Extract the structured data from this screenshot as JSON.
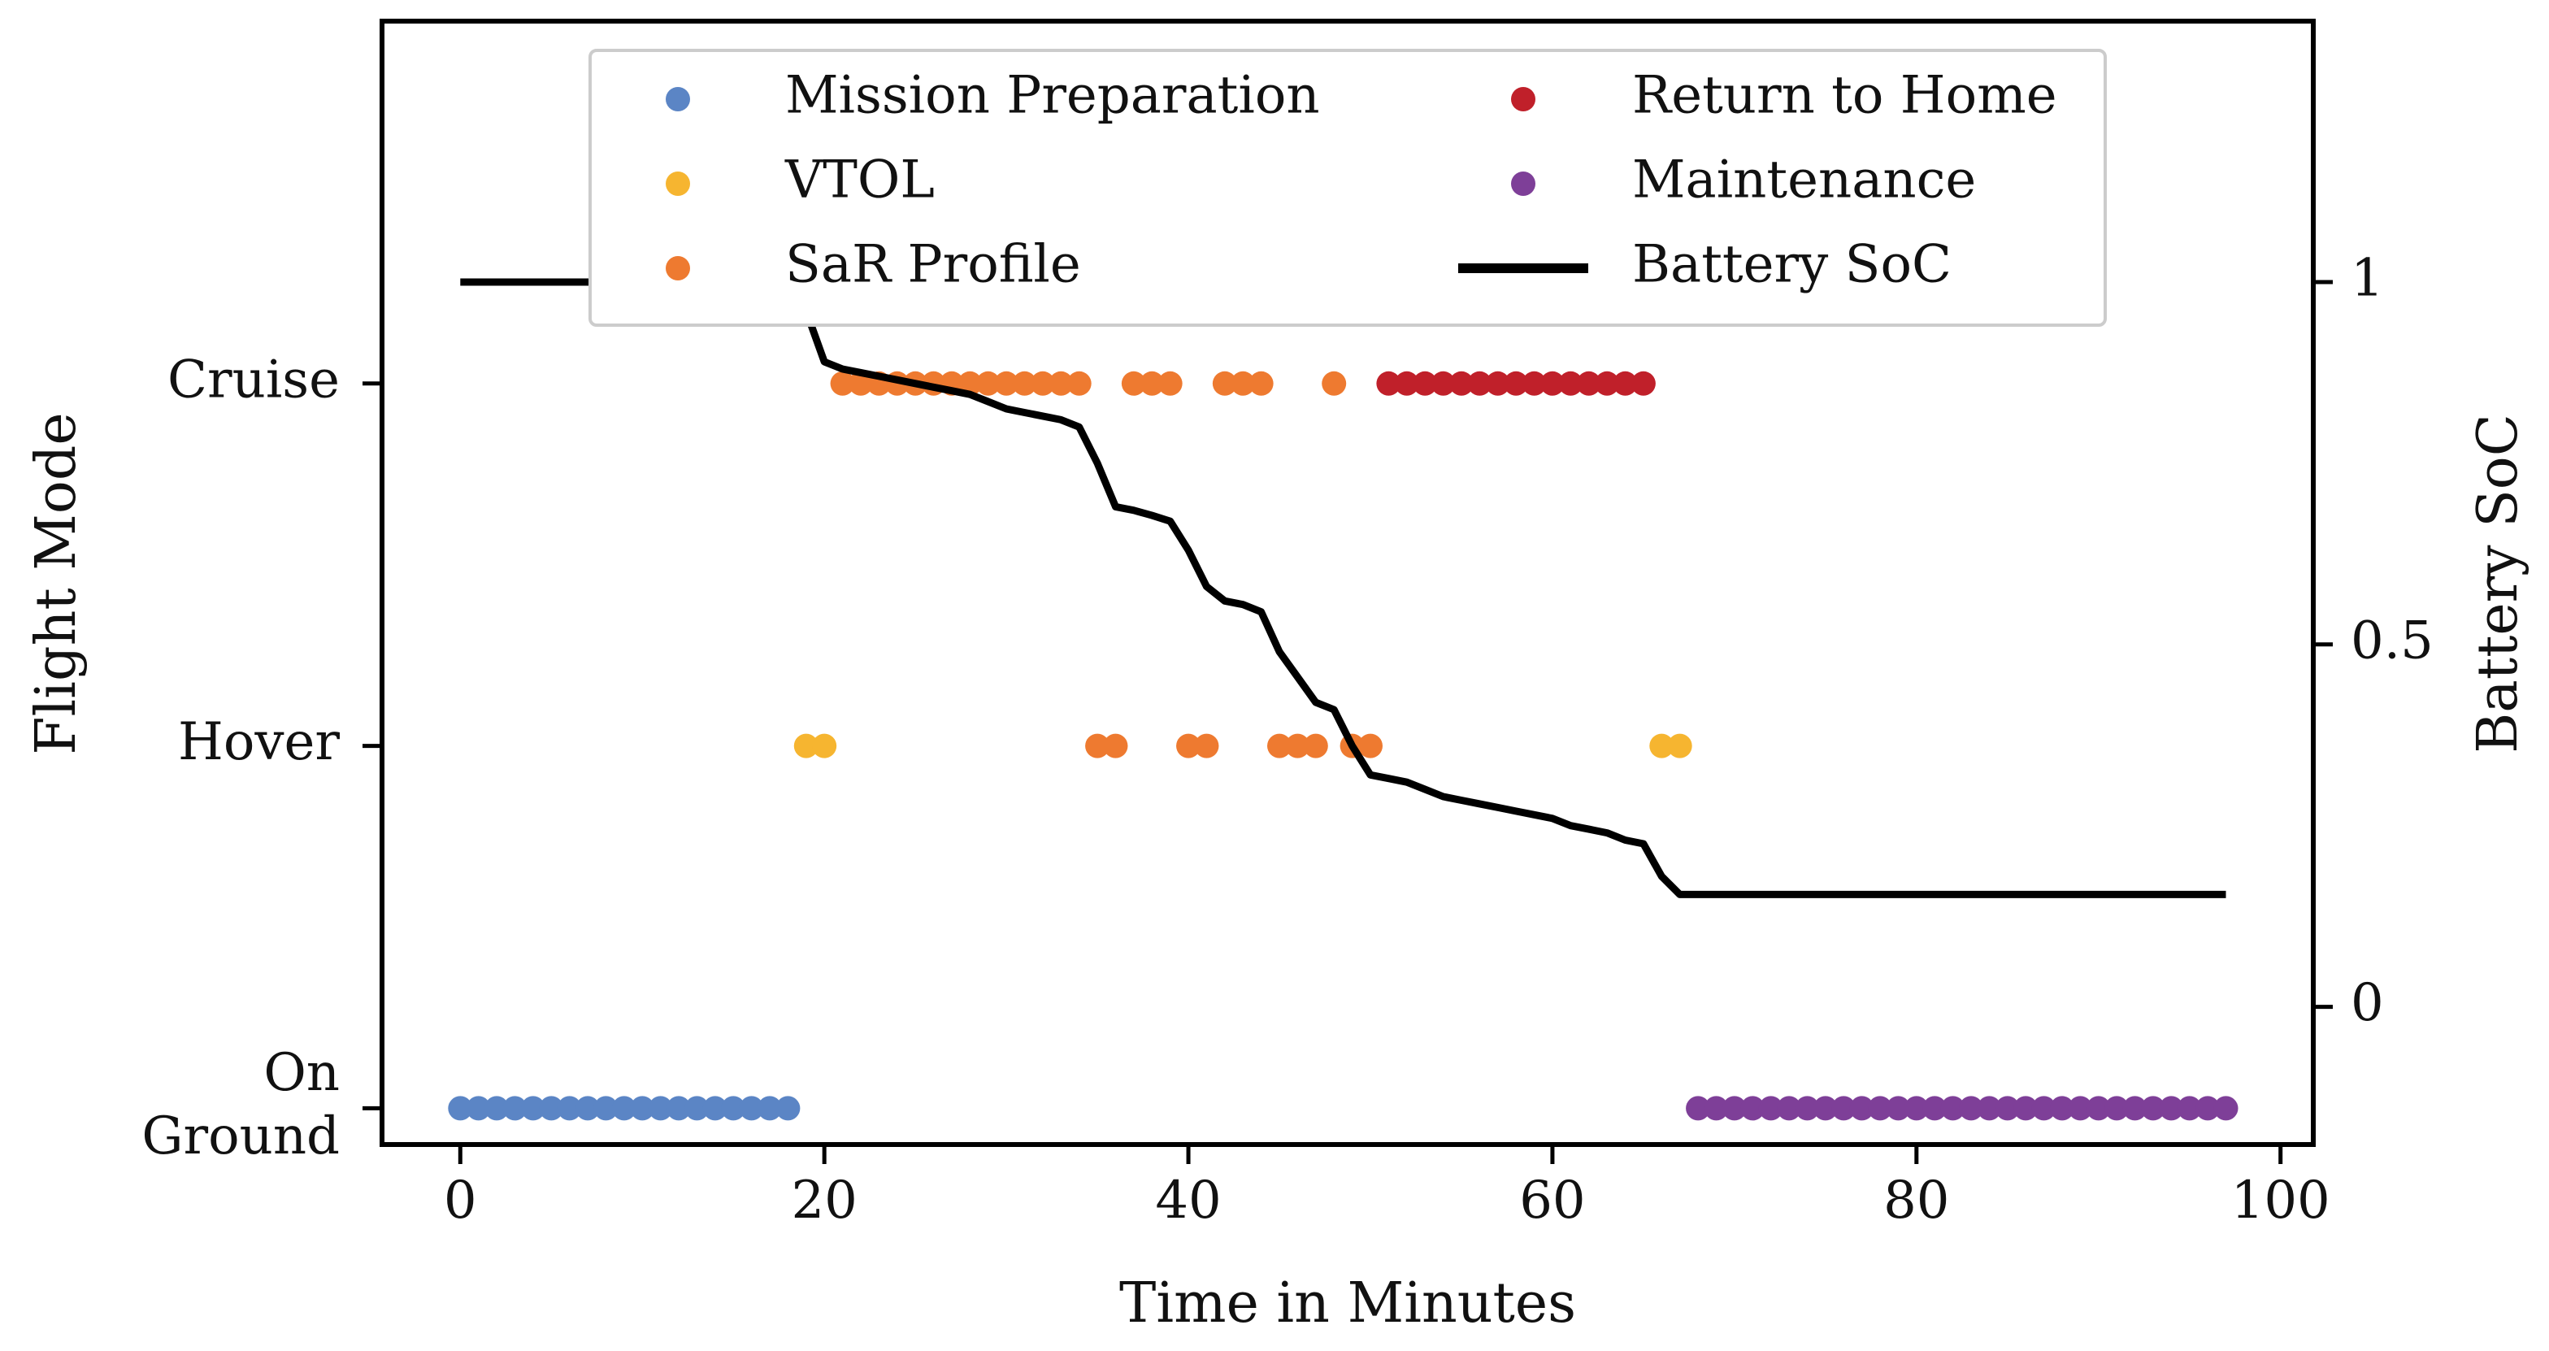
{
  "chart_data": {
    "type": "scatter",
    "xlabel": "Time in Minutes",
    "ylabel": "Flight Mode",
    "y2label": "Battery SoC",
    "xlim": [
      -4.3,
      101.8
    ],
    "xticks": [
      0,
      20,
      40,
      60,
      80,
      100
    ],
    "xtick_labels": [
      "0",
      "20",
      "40",
      "60",
      "80",
      "100"
    ],
    "y_categories": [
      "On Ground",
      "Hover",
      "Cruise"
    ],
    "y_category_lines": [
      [
        "On",
        "Ground"
      ],
      [
        "Hover"
      ],
      [
        "Cruise"
      ]
    ],
    "ylim": [
      -0.1,
      3.0
    ],
    "y2lim": [
      -0.19,
      1.36
    ],
    "y2ticks": [
      0,
      0.5,
      1
    ],
    "y2tick_labels": [
      "0",
      "0.5",
      "1"
    ],
    "legend_position": "upper center",
    "colors": {
      "mission_preparation": "#5b85c5",
      "vtol": "#f6b530",
      "sar_profile": "#ee7a30",
      "return_to_home": "#c0202a",
      "maintenance": "#7e3f98",
      "battery": "#000000"
    },
    "series": [
      {
        "name": "Mission Preparation",
        "kind": "scatter",
        "color": "#5b85c5",
        "points": [
          [
            0,
            0
          ],
          [
            1,
            0
          ],
          [
            2,
            0
          ],
          [
            3,
            0
          ],
          [
            4,
            0
          ],
          [
            5,
            0
          ],
          [
            6,
            0
          ],
          [
            7,
            0
          ],
          [
            8,
            0
          ],
          [
            9,
            0
          ],
          [
            10,
            0
          ],
          [
            11,
            0
          ],
          [
            12,
            0
          ],
          [
            13,
            0
          ],
          [
            14,
            0
          ],
          [
            15,
            0
          ],
          [
            16,
            0
          ],
          [
            17,
            0
          ],
          [
            18,
            0
          ]
        ]
      },
      {
        "name": "VTOL",
        "kind": "scatter",
        "color": "#f6b530",
        "points": [
          [
            19,
            1
          ],
          [
            20,
            1
          ],
          [
            66,
            1
          ],
          [
            67,
            1
          ]
        ]
      },
      {
        "name": "SaR Profile",
        "kind": "scatter",
        "color": "#ee7a30",
        "points": [
          [
            21,
            2
          ],
          [
            22,
            2
          ],
          [
            23,
            2
          ],
          [
            24,
            2
          ],
          [
            25,
            2
          ],
          [
            26,
            2
          ],
          [
            27,
            2
          ],
          [
            28,
            2
          ],
          [
            29,
            2
          ],
          [
            30,
            2
          ],
          [
            31,
            2
          ],
          [
            32,
            2
          ],
          [
            33,
            2
          ],
          [
            34,
            2
          ],
          [
            37,
            2
          ],
          [
            38,
            2
          ],
          [
            39,
            2
          ],
          [
            42,
            2
          ],
          [
            43,
            2
          ],
          [
            44,
            2
          ],
          [
            48,
            2
          ],
          [
            35,
            1
          ],
          [
            36,
            1
          ],
          [
            40,
            1
          ],
          [
            41,
            1
          ],
          [
            45,
            1
          ],
          [
            46,
            1
          ],
          [
            47,
            1
          ],
          [
            49,
            1
          ],
          [
            50,
            1
          ]
        ]
      },
      {
        "name": "Return to Home",
        "kind": "scatter",
        "color": "#c0202a",
        "points": [
          [
            51,
            2
          ],
          [
            52,
            2
          ],
          [
            53,
            2
          ],
          [
            54,
            2
          ],
          [
            55,
            2
          ],
          [
            56,
            2
          ],
          [
            57,
            2
          ],
          [
            58,
            2
          ],
          [
            59,
            2
          ],
          [
            60,
            2
          ],
          [
            61,
            2
          ],
          [
            62,
            2
          ],
          [
            63,
            2
          ],
          [
            64,
            2
          ],
          [
            65,
            2
          ]
        ]
      },
      {
        "name": "Maintenance",
        "kind": "scatter",
        "color": "#7e3f98",
        "points": [
          [
            68,
            0
          ],
          [
            69,
            0
          ],
          [
            70,
            0
          ],
          [
            71,
            0
          ],
          [
            72,
            0
          ],
          [
            73,
            0
          ],
          [
            74,
            0
          ],
          [
            75,
            0
          ],
          [
            76,
            0
          ],
          [
            77,
            0
          ],
          [
            78,
            0
          ],
          [
            79,
            0
          ],
          [
            80,
            0
          ],
          [
            81,
            0
          ],
          [
            82,
            0
          ],
          [
            83,
            0
          ],
          [
            84,
            0
          ],
          [
            85,
            0
          ],
          [
            86,
            0
          ],
          [
            87,
            0
          ],
          [
            88,
            0
          ],
          [
            89,
            0
          ],
          [
            90,
            0
          ],
          [
            91,
            0
          ],
          [
            92,
            0
          ],
          [
            93,
            0
          ],
          [
            94,
            0
          ],
          [
            95,
            0
          ],
          [
            96,
            0
          ],
          [
            97,
            0
          ]
        ]
      },
      {
        "name": "Battery SoC",
        "kind": "line",
        "axis": "right",
        "color": "#000000",
        "points": [
          [
            0,
            1.0
          ],
          [
            18,
            1.0
          ],
          [
            19,
            0.96
          ],
          [
            20,
            0.89
          ],
          [
            21,
            0.88
          ],
          [
            22,
            0.875
          ],
          [
            23,
            0.87
          ],
          [
            24,
            0.865
          ],
          [
            25,
            0.86
          ],
          [
            26,
            0.855
          ],
          [
            27,
            0.85
          ],
          [
            28,
            0.845
          ],
          [
            29,
            0.835
          ],
          [
            30,
            0.825
          ],
          [
            31,
            0.82
          ],
          [
            32,
            0.815
          ],
          [
            33,
            0.81
          ],
          [
            34,
            0.8
          ],
          [
            35,
            0.75
          ],
          [
            36,
            0.69
          ],
          [
            37,
            0.685
          ],
          [
            38,
            0.678
          ],
          [
            39,
            0.67
          ],
          [
            40,
            0.63
          ],
          [
            41,
            0.58
          ],
          [
            42,
            0.56
          ],
          [
            43,
            0.555
          ],
          [
            44,
            0.545
          ],
          [
            45,
            0.49
          ],
          [
            46,
            0.455
          ],
          [
            47,
            0.42
          ],
          [
            48,
            0.41
          ],
          [
            49,
            0.36
          ],
          [
            50,
            0.32
          ],
          [
            51,
            0.315
          ],
          [
            52,
            0.31
          ],
          [
            53,
            0.3
          ],
          [
            54,
            0.29
          ],
          [
            55,
            0.285
          ],
          [
            56,
            0.28
          ],
          [
            57,
            0.275
          ],
          [
            58,
            0.27
          ],
          [
            59,
            0.265
          ],
          [
            60,
            0.26
          ],
          [
            61,
            0.25
          ],
          [
            62,
            0.245
          ],
          [
            63,
            0.24
          ],
          [
            64,
            0.23
          ],
          [
            65,
            0.225
          ],
          [
            66,
            0.18
          ],
          [
            67,
            0.155
          ],
          [
            68,
            0.155
          ],
          [
            97,
            0.155
          ]
        ]
      }
    ],
    "legend": [
      {
        "label": "Mission Preparation",
        "marker": "dot",
        "color": "#5b85c5"
      },
      {
        "label": "VTOL",
        "marker": "dot",
        "color": "#f6b530"
      },
      {
        "label": "SaR Profile",
        "marker": "dot",
        "color": "#ee7a30"
      },
      {
        "label": "Return to Home",
        "marker": "dot",
        "color": "#c0202a"
      },
      {
        "label": "Maintenance",
        "marker": "dot",
        "color": "#7e3f98"
      },
      {
        "label": "Battery SoC",
        "marker": "line",
        "color": "#000000"
      }
    ]
  }
}
